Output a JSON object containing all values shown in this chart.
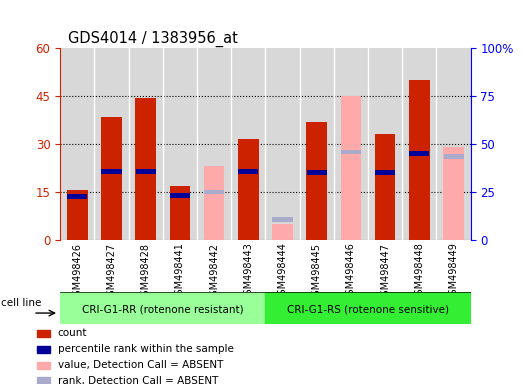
{
  "title": "GDS4014 / 1383956_at",
  "samples": [
    "GSM498426",
    "GSM498427",
    "GSM498428",
    "GSM498441",
    "GSM498442",
    "GSM498443",
    "GSM498444",
    "GSM498445",
    "GSM498446",
    "GSM498447",
    "GSM498448",
    "GSM498449"
  ],
  "red_bars": [
    15.5,
    38.5,
    44.5,
    17.0,
    0,
    31.5,
    0,
    37.0,
    0,
    33.0,
    50.0,
    0
  ],
  "pink_bars": [
    0,
    0,
    0,
    0,
    23.0,
    0,
    5.0,
    0,
    45.0,
    0,
    0,
    29.0
  ],
  "blue_markers": [
    13.5,
    21.5,
    21.5,
    14.0,
    0,
    21.5,
    0,
    21.0,
    0,
    21.0,
    27.0,
    0
  ],
  "light_blue_markers": [
    0,
    0,
    0,
    0,
    15.0,
    0,
    6.5,
    0,
    27.5,
    0,
    0,
    26.0
  ],
  "group1_samples": 6,
  "group2_samples": 6,
  "group1_label": "CRI-G1-RR (rotenone resistant)",
  "group2_label": "CRI-G1-RS (rotenone sensitive)",
  "cell_line_label": "cell line",
  "ylim_left": [
    0,
    60
  ],
  "ylim_right": [
    0,
    100
  ],
  "yticks_left": [
    0,
    15,
    30,
    45,
    60
  ],
  "ytick_labels_left": [
    "0",
    "15",
    "30",
    "45",
    "60"
  ],
  "yticks_right": [
    0,
    25,
    50,
    75,
    100
  ],
  "ytick_labels_right": [
    "0",
    "25",
    "50",
    "75",
    "100%"
  ],
  "legend_labels": [
    "count",
    "percentile rank within the sample",
    "value, Detection Call = ABSENT",
    "rank, Detection Call = ABSENT"
  ],
  "bar_width": 0.6,
  "red_color": "#cc2200",
  "pink_color": "#ffaaaa",
  "blue_color": "#000099",
  "light_blue_color": "#aaaacc",
  "group1_color": "#99ff99",
  "group2_color": "#33ee33",
  "gray_color": "#d8d8d8"
}
